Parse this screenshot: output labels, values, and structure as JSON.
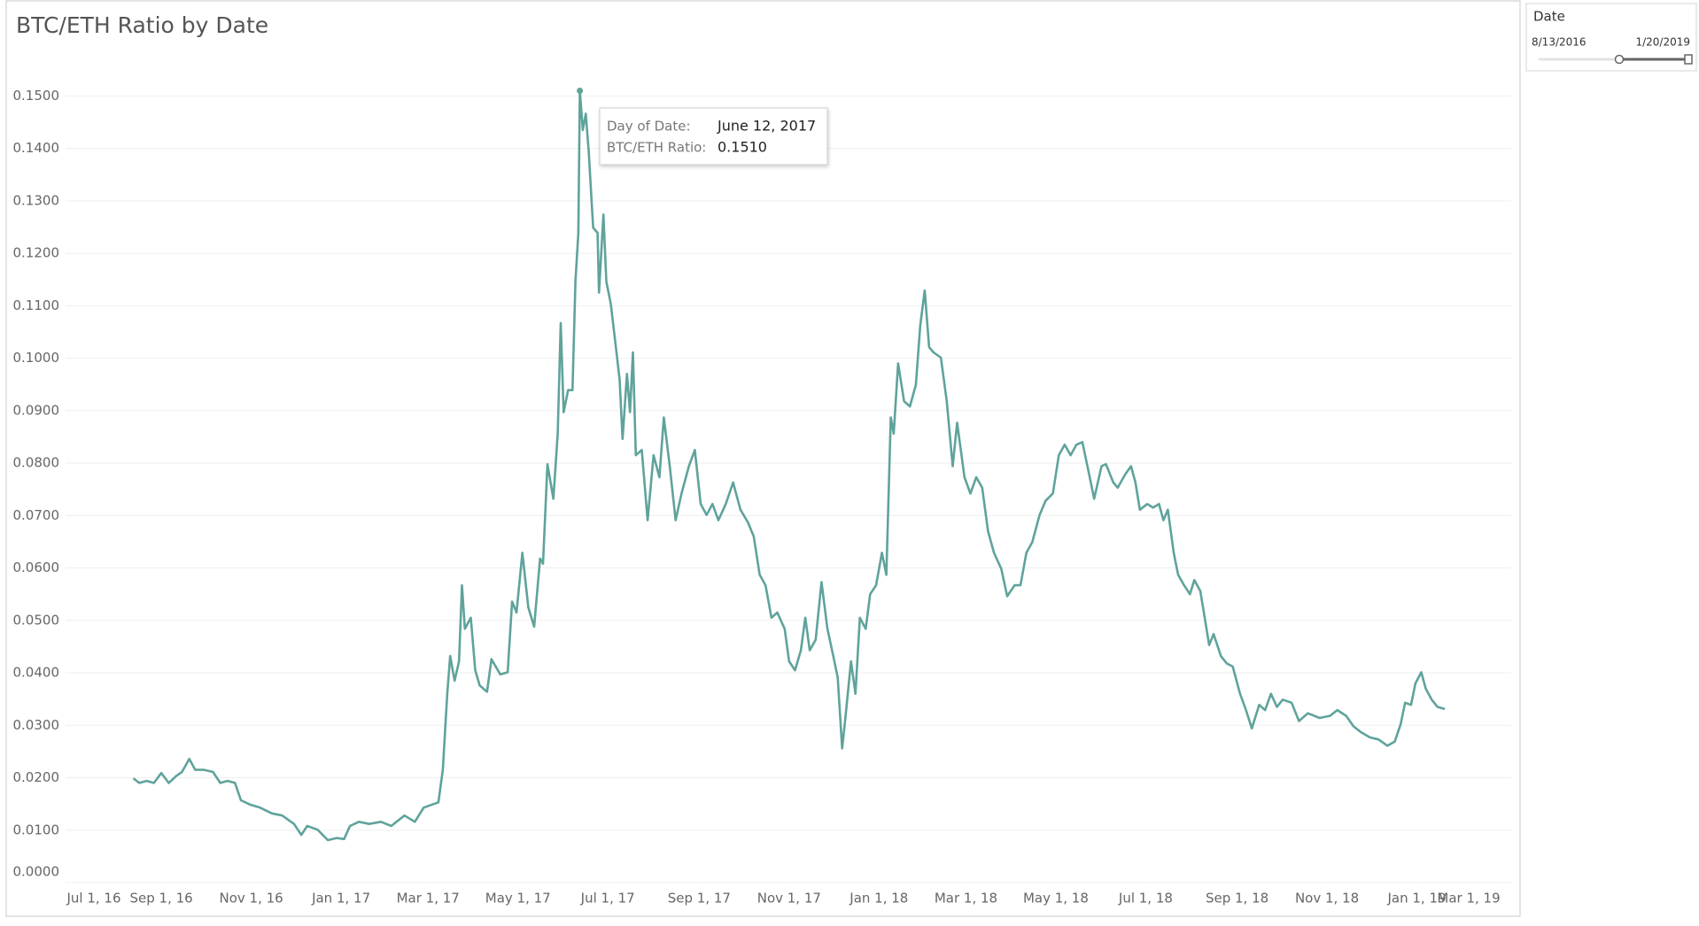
{
  "chart_data": {
    "type": "line",
    "title": "BTC/ETH Ratio by Date",
    "x": [
      "2016-08-13",
      "2016-08-17",
      "2016-08-22",
      "2016-08-27",
      "2016-09-01",
      "2016-09-06",
      "2016-09-11",
      "2016-09-15",
      "2016-09-20",
      "2016-09-24",
      "2016-09-30",
      "2016-10-06",
      "2016-10-11",
      "2016-10-16",
      "2016-10-21",
      "2016-10-25",
      "2016-10-31",
      "2016-11-07",
      "2016-11-15",
      "2016-11-22",
      "2016-11-30",
      "2016-12-05",
      "2016-12-09",
      "2016-12-16",
      "2016-12-23",
      "2016-12-29",
      "2017-01-03",
      "2017-01-07",
      "2017-01-13",
      "2017-01-20",
      "2017-01-28",
      "2017-02-04",
      "2017-02-13",
      "2017-02-20",
      "2017-02-26",
      "2017-03-04",
      "2017-03-08",
      "2017-03-11",
      "2017-03-14",
      "2017-03-16",
      "2017-03-19",
      "2017-03-22",
      "2017-03-24",
      "2017-03-26",
      "2017-03-30",
      "2017-04-02",
      "2017-04-05",
      "2017-04-10",
      "2017-04-13",
      "2017-04-19",
      "2017-04-24",
      "2017-04-27",
      "2017-04-30",
      "2017-05-04",
      "2017-05-08",
      "2017-05-12",
      "2017-05-16",
      "2017-05-18",
      "2017-05-21",
      "2017-05-25",
      "2017-05-28",
      "2017-05-30",
      "2017-06-01",
      "2017-06-04",
      "2017-06-07",
      "2017-06-09",
      "2017-06-11",
      "2017-06-12",
      "2017-06-14",
      "2017-06-16",
      "2017-06-18",
      "2017-06-21",
      "2017-06-24",
      "2017-06-25",
      "2017-06-28",
      "2017-06-30",
      "2017-07-03",
      "2017-07-06",
      "2017-07-09",
      "2017-07-11",
      "2017-07-14",
      "2017-07-16",
      "2017-07-18",
      "2017-07-20",
      "2017-07-24",
      "2017-07-28",
      "2017-08-01",
      "2017-08-05",
      "2017-08-08",
      "2017-08-12",
      "2017-08-16",
      "2017-08-20",
      "2017-08-25",
      "2017-08-29",
      "2017-09-02",
      "2017-09-06",
      "2017-09-10",
      "2017-09-14",
      "2017-09-19",
      "2017-09-24",
      "2017-09-29",
      "2017-10-04",
      "2017-10-08",
      "2017-10-12",
      "2017-10-16",
      "2017-10-20",
      "2017-10-24",
      "2017-10-29",
      "2017-11-01",
      "2017-11-05",
      "2017-11-09",
      "2017-11-12",
      "2017-11-15",
      "2017-11-19",
      "2017-11-23",
      "2017-11-27",
      "2017-12-01",
      "2017-12-04",
      "2017-12-07",
      "2017-12-09",
      "2017-12-13",
      "2017-12-16",
      "2017-12-19",
      "2017-12-23",
      "2017-12-26",
      "2017-12-30",
      "2018-01-03",
      "2018-01-06",
      "2018-01-09",
      "2018-01-11",
      "2018-01-14",
      "2018-01-18",
      "2018-01-22",
      "2018-01-26",
      "2018-01-29",
      "2018-02-01",
      "2018-02-04",
      "2018-02-07",
      "2018-02-12",
      "2018-02-16",
      "2018-02-20",
      "2018-02-23",
      "2018-02-28",
      "2018-03-04",
      "2018-03-08",
      "2018-03-12",
      "2018-03-16",
      "2018-03-20",
      "2018-03-25",
      "2018-03-29",
      "2018-04-03",
      "2018-04-07",
      "2018-04-11",
      "2018-04-15",
      "2018-04-20",
      "2018-04-24",
      "2018-04-29",
      "2018-05-03",
      "2018-05-07",
      "2018-05-11",
      "2018-05-15",
      "2018-05-19",
      "2018-05-24",
      "2018-05-27",
      "2018-06-01",
      "2018-06-04",
      "2018-06-09",
      "2018-06-12",
      "2018-06-17",
      "2018-06-21",
      "2018-06-24",
      "2018-06-27",
      "2018-07-02",
      "2018-07-06",
      "2018-07-10",
      "2018-07-13",
      "2018-07-16",
      "2018-07-20",
      "2018-07-23",
      "2018-07-27",
      "2018-07-31",
      "2018-08-03",
      "2018-08-07",
      "2018-08-10",
      "2018-08-13",
      "2018-08-16",
      "2018-08-21",
      "2018-08-25",
      "2018-08-29",
      "2018-09-03",
      "2018-09-07",
      "2018-09-11",
      "2018-09-16",
      "2018-09-20",
      "2018-09-24",
      "2018-09-28",
      "2018-10-02",
      "2018-10-08",
      "2018-10-13",
      "2018-10-19",
      "2018-10-27",
      "2018-11-03",
      "2018-11-08",
      "2018-11-14",
      "2018-11-19",
      "2018-11-24",
      "2018-11-30",
      "2018-12-06",
      "2018-12-12",
      "2018-12-17",
      "2018-12-21",
      "2018-12-24",
      "2018-12-28",
      "2018-12-31",
      "2019-01-04",
      "2019-01-07",
      "2019-01-11",
      "2019-01-15",
      "2019-01-20"
    ],
    "values": [
      0.0199,
      0.019,
      0.0194,
      0.019,
      0.0209,
      0.019,
      0.0203,
      0.0211,
      0.0236,
      0.0215,
      0.0215,
      0.0211,
      0.019,
      0.0194,
      0.019,
      0.0157,
      0.0149,
      0.0143,
      0.0132,
      0.0128,
      0.0112,
      0.0091,
      0.0108,
      0.0101,
      0.0081,
      0.0085,
      0.0083,
      0.0108,
      0.0116,
      0.0112,
      0.0116,
      0.0108,
      0.0128,
      0.0116,
      0.0143,
      0.0149,
      0.0153,
      0.0215,
      0.036,
      0.0432,
      0.0385,
      0.0422,
      0.0567,
      0.0484,
      0.0505,
      0.0405,
      0.0376,
      0.0364,
      0.0426,
      0.0397,
      0.0401,
      0.0536,
      0.0515,
      0.0629,
      0.0525,
      0.0488,
      0.0618,
      0.0608,
      0.0798,
      0.0732,
      0.0856,
      0.1067,
      0.0897,
      0.0939,
      0.0939,
      0.1146,
      0.1239,
      0.151,
      0.1435,
      0.1466,
      0.1394,
      0.1249,
      0.1239,
      0.1125,
      0.1274,
      0.1146,
      0.1104,
      0.1032,
      0.0959,
      0.0846,
      0.097,
      0.0897,
      0.1011,
      0.0815,
      0.0825,
      0.0691,
      0.0815,
      0.0773,
      0.0887,
      0.0794,
      0.0691,
      0.0742,
      0.0794,
      0.0825,
      0.0722,
      0.0701,
      0.0722,
      0.0691,
      0.0722,
      0.0763,
      0.0711,
      0.0687,
      0.066,
      0.0587,
      0.0567,
      0.0505,
      0.0515,
      0.0484,
      0.0422,
      0.0405,
      0.0443,
      0.0505,
      0.0443,
      0.0463,
      0.0573,
      0.0484,
      0.0432,
      0.0391,
      0.0256,
      0.0308,
      0.0422,
      0.036,
      0.0505,
      0.0484,
      0.055,
      0.0567,
      0.0629,
      0.0587,
      0.0887,
      0.0856,
      0.099,
      0.0918,
      0.0908,
      0.0949,
      0.1063,
      0.1129,
      0.1021,
      0.1011,
      0.1001,
      0.0918,
      0.0794,
      0.0877,
      0.0773,
      0.0742,
      0.0773,
      0.0753,
      0.067,
      0.0629,
      0.0598,
      0.0546,
      0.0567,
      0.0567,
      0.0629,
      0.0649,
      0.0701,
      0.0728,
      0.0742,
      0.0815,
      0.0835,
      0.0815,
      0.0835,
      0.084,
      0.0773,
      0.0732,
      0.0794,
      0.0798,
      0.0763,
      0.0753,
      0.0778,
      0.0794,
      0.0763,
      0.0711,
      0.0722,
      0.0715,
      0.0722,
      0.0691,
      0.0711,
      0.0629,
      0.0587,
      0.0567,
      0.055,
      0.0577,
      0.0556,
      0.0505,
      0.0453,
      0.0474,
      0.0432,
      0.0418,
      0.0412,
      0.036,
      0.0329,
      0.0294,
      0.0339,
      0.0329,
      0.036,
      0.0335,
      0.0349,
      0.0343,
      0.0308,
      0.0323,
      0.0314,
      0.0318,
      0.0329,
      0.0318,
      0.0298,
      0.0287,
      0.0277,
      0.0273,
      0.0261,
      0.0269,
      0.0302,
      0.0343,
      0.0339,
      0.038,
      0.0401,
      0.037,
      0.0349,
      0.0335,
      0.0331
    ],
    "color": "#5fa39b",
    "xlim": [
      "2016-06-28",
      "2019-03-06"
    ],
    "xticks": [
      {
        "value": "2016-07-01",
        "label": "Jul 1, 16"
      },
      {
        "value": "2016-09-01",
        "label": "Sep 1, 16"
      },
      {
        "value": "2016-11-01",
        "label": "Nov 1, 16"
      },
      {
        "value": "2017-01-01",
        "label": "Jan 1, 17"
      },
      {
        "value": "2017-03-01",
        "label": "Mar 1, 17"
      },
      {
        "value": "2017-05-01",
        "label": "May 1, 17"
      },
      {
        "value": "2017-07-01",
        "label": "Jul 1, 17"
      },
      {
        "value": "2017-09-01",
        "label": "Sep 1, 17"
      },
      {
        "value": "2017-11-01",
        "label": "Nov 1, 17"
      },
      {
        "value": "2018-01-01",
        "label": "Jan 1, 18"
      },
      {
        "value": "2018-03-01",
        "label": "Mar 1, 18"
      },
      {
        "value": "2018-05-01",
        "label": "May 1, 18"
      },
      {
        "value": "2018-07-01",
        "label": "Jul 1, 18"
      },
      {
        "value": "2018-09-01",
        "label": "Sep 1, 18"
      },
      {
        "value": "2018-11-01",
        "label": "Nov 1, 18"
      },
      {
        "value": "2019-01-01",
        "label": "Jan 1, 19"
      },
      {
        "value": "2019-03-01",
        "label": "Mar 1, 19"
      }
    ],
    "ylim": [
      0,
      0.158
    ],
    "yticks": [
      {
        "value": 0,
        "label": "0.0000"
      },
      {
        "value": 0.01,
        "label": "0.0100"
      },
      {
        "value": 0.02,
        "label": "0.0200"
      },
      {
        "value": 0.03,
        "label": "0.0300"
      },
      {
        "value": 0.04,
        "label": "0.0400"
      },
      {
        "value": 0.05,
        "label": "0.0500"
      },
      {
        "value": 0.06,
        "label": "0.0600"
      },
      {
        "value": 0.07,
        "label": "0.0700"
      },
      {
        "value": 0.08,
        "label": "0.0800"
      },
      {
        "value": 0.09,
        "label": "0.0900"
      },
      {
        "value": 0.1,
        "label": "0.1000"
      },
      {
        "value": 0.11,
        "label": "0.1100"
      },
      {
        "value": 0.12,
        "label": "0.1200"
      },
      {
        "value": 0.13,
        "label": "0.1300"
      },
      {
        "value": 0.14,
        "label": "0.1400"
      },
      {
        "value": 0.15,
        "label": "0.1500"
      }
    ],
    "grid": true,
    "highlight_index": 67,
    "tooltip": {
      "date_label": "Day of Date:",
      "date": "June 12, 2017",
      "value_label": "BTC/ETH Ratio:",
      "value": "0.1510"
    }
  },
  "filter": {
    "title": "Date",
    "start": "8/13/2016",
    "end": "1/20/2019"
  }
}
